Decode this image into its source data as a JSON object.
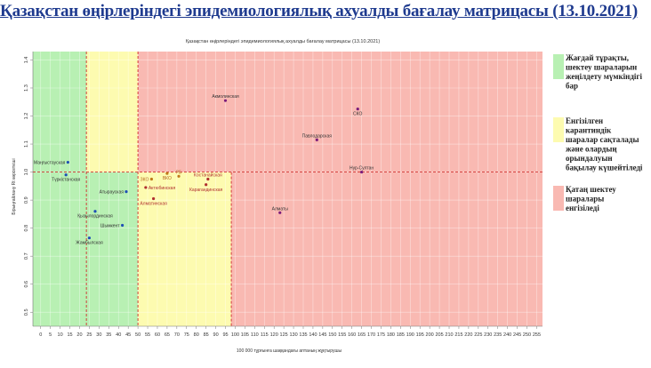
{
  "page": {
    "title": "Қазақстан өңірлеріндегі эпидемиологиялық ахуалды бағалау матрицасы  (13.10.2021)"
  },
  "chart_data": {
    "type": "scatter",
    "title": "Қазақстан өңірлеріндегі эпидемиологиялық ахуалды бағалау матрицасы (13.10.2021)",
    "xlabel": "100 000 тұрғынға шаққандағы аптаның жұқтырушы",
    "ylabel": "Бірыңғайлану Rt көрсеткіші",
    "xlim": [
      -4,
      258
    ],
    "ylim": [
      0.45,
      1.43
    ],
    "xticks": [
      0,
      5,
      10,
      15,
      20,
      25,
      30,
      35,
      40,
      45,
      50,
      55,
      60,
      65,
      70,
      75,
      80,
      85,
      90,
      95,
      100,
      105,
      110,
      115,
      120,
      125,
      130,
      135,
      140,
      145,
      150,
      155,
      160,
      165,
      170,
      175,
      180,
      185,
      190,
      195,
      200,
      205,
      210,
      215,
      220,
      225,
      230,
      235,
      240,
      245,
      250,
      255
    ],
    "yticks": [
      0.5,
      0.6,
      0.7,
      0.8,
      0.9,
      1.0,
      1.1,
      1.2,
      1.3,
      1.4
    ],
    "grid": true,
    "threshold_lines": {
      "x": [
        23.5,
        50,
        98
      ],
      "y": 1.0
    },
    "zones": [
      {
        "name": "green",
        "x": [
          -4,
          50
        ],
        "y": [
          0.45,
          1.0
        ],
        "color": "#b8f0b3"
      },
      {
        "name": "green",
        "x": [
          -4,
          23.5
        ],
        "y": [
          1.0,
          1.43
        ],
        "color": "#b8f0b3"
      },
      {
        "name": "yellow",
        "x": [
          23.5,
          50
        ],
        "y": [
          1.0,
          1.43
        ],
        "color": "#fdfbb0"
      },
      {
        "name": "yellow",
        "x": [
          50,
          98
        ],
        "y": [
          0.45,
          1.0
        ],
        "color": "#fdfbb0"
      },
      {
        "name": "red",
        "x": [
          50,
          258
        ],
        "y": [
          1.0,
          1.43
        ],
        "color": "#f9b9b2"
      },
      {
        "name": "red",
        "x": [
          98,
          258
        ],
        "y": [
          0.45,
          1.0
        ],
        "color": "#f9b9b2"
      }
    ],
    "points": [
      {
        "label": "Маңғыстауская",
        "x": 14,
        "y": 1.035,
        "color": "#1f4fb5",
        "label_color": "#333333",
        "label_pos": "left"
      },
      {
        "label": "Түркістанская",
        "x": 13,
        "y": 0.99,
        "color": "#1f4fb5",
        "label_color": "#333333",
        "label_pos": "below"
      },
      {
        "label": "Атырауская",
        "x": 44,
        "y": 0.93,
        "color": "#1f4fb5",
        "label_color": "#333333",
        "label_pos": "left"
      },
      {
        "label": "Қызылординская",
        "x": 28,
        "y": 0.86,
        "color": "#1f4fb5",
        "label_color": "#333333",
        "label_pos": "below"
      },
      {
        "label": "Шымкент",
        "x": 42,
        "y": 0.81,
        "color": "#1f4fb5",
        "label_color": "#333333",
        "label_pos": "left"
      },
      {
        "label": "Жамбылская",
        "x": 25,
        "y": 0.765,
        "color": "#1f4fb5",
        "label_color": "#333333",
        "label_pos": "below"
      },
      {
        "label": "ЗКО",
        "x": 57,
        "y": 0.975,
        "color": "#c07a1a",
        "label_color": "#b5651d",
        "label_pos": "left"
      },
      {
        "label": "Актюбинская",
        "x": 54,
        "y": 0.945,
        "color": "#b03030",
        "label_color": "#b03030",
        "label_pos": "right"
      },
      {
        "label": "ВКО",
        "x": 65,
        "y": 0.995,
        "color": "#c07a1a",
        "label_color": "#b5651d",
        "label_pos": "below"
      },
      {
        "label": "РБ",
        "x": 71,
        "y": 0.985,
        "color": "#c07a1a",
        "label_color": "#b5651d",
        "label_pos": "above"
      },
      {
        "label": "Алматинская",
        "x": 58,
        "y": 0.905,
        "color": "#b03030",
        "label_color": "#b03030",
        "label_pos": "below"
      },
      {
        "label": "Костанайская",
        "x": 86,
        "y": 0.975,
        "color": "#b03030",
        "label_color": "#b03030",
        "label_pos": "above"
      },
      {
        "label": "Карагандинская",
        "x": 85,
        "y": 0.955,
        "color": "#b03030",
        "label_color": "#b03030",
        "label_pos": "below"
      },
      {
        "label": "Акмолинская",
        "x": 95,
        "y": 1.255,
        "color": "#7a1b7a",
        "label_color": "#333333",
        "label_pos": "above"
      },
      {
        "label": "СКО",
        "x": 163,
        "y": 1.225,
        "color": "#7a1b7a",
        "label_color": "#333333",
        "label_pos": "below"
      },
      {
        "label": "Павлодарская",
        "x": 142,
        "y": 1.115,
        "color": "#7a1b7a",
        "label_color": "#333333",
        "label_pos": "above"
      },
      {
        "label": "Нур-Султан",
        "x": 165,
        "y": 1.0,
        "color": "#7a1b7a",
        "label_color": "#333333",
        "label_pos": "above"
      },
      {
        "label": "Алматы",
        "x": 123,
        "y": 0.855,
        "color": "#7a1b7a",
        "label_color": "#333333",
        "label_pos": "above"
      }
    ]
  },
  "legend": {
    "items": [
      {
        "text_lines": [
          "Жағдай тұрақты,",
          "шектеу шараларын",
          "жеңілдету мүмкіндігі",
          "бар"
        ],
        "color": "#b8f0b3"
      },
      {
        "text_lines": [
          "Енгізілген",
          "карантиндік",
          "шаралар сақталады",
          "және олардың",
          "орындалуын",
          "бақылау күшейтіледі"
        ],
        "color": "#fdfbb0"
      },
      {
        "text_lines": [
          "Қатаң шектеу",
          "шаралары",
          "енгізіледі"
        ],
        "color": "#f9b9b2"
      }
    ]
  }
}
